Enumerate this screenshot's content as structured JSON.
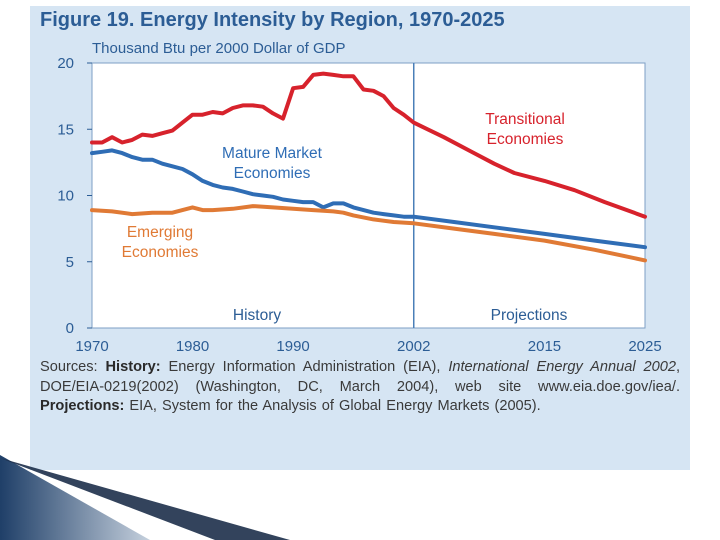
{
  "figure": {
    "title": "Figure 19.  Energy Intensity by Region, 1970-2025",
    "y_axis_label": "Thousand Btu per 2000 Dollar of GDP"
  },
  "sources": {
    "prefix": "Sources: ",
    "history_label": "History:",
    "history_text": " Energy Information Administration (EIA), ",
    "publication": "International Energy Annual 2002",
    "history_text2": ", DOE/EIA-0219(2002) (Washington, DC, March 2004), web site www.eia.doe.gov/iea/. ",
    "projections_label": "Projections:",
    "projections_text": " EIA, System for the Analysis of Global Energy Markets (2005)."
  },
  "colors": {
    "panel": "#d6e5f3",
    "plot_bg": "#ffffff",
    "text_blue": "#2c5d95",
    "transitional": "#d7222c",
    "mature": "#2f6db5",
    "emerging": "#e07a35"
  },
  "chart_data": {
    "type": "line",
    "xlim": [
      1970,
      2025
    ],
    "ylim": [
      0,
      20
    ],
    "x_ticks": [
      {
        "value": 1970,
        "label": "1970"
      },
      {
        "value": 1980,
        "label": "1980"
      },
      {
        "value": 1990,
        "label": "1990"
      },
      {
        "value": 2002,
        "label": "2002"
      },
      {
        "value": 2015,
        "label": "2015"
      },
      {
        "value": 2025,
        "label": "2025"
      }
    ],
    "y_ticks": [
      {
        "value": 0,
        "label": "0"
      },
      {
        "value": 5,
        "label": "5"
      },
      {
        "value": 10,
        "label": "10"
      },
      {
        "value": 15,
        "label": "15"
      },
      {
        "value": 20,
        "label": "20"
      }
    ],
    "divider_x": 2002,
    "region_labels": {
      "history": "History",
      "projections": "Projections"
    },
    "series": [
      {
        "key": "transitional",
        "label_lines": [
          "Transitional",
          "Economies"
        ],
        "color": "#d7222c",
        "points": [
          [
            1970,
            14.0
          ],
          [
            1971,
            14.0
          ],
          [
            1972,
            14.4
          ],
          [
            1973,
            14.0
          ],
          [
            1974,
            14.2
          ],
          [
            1975,
            14.6
          ],
          [
            1976,
            14.5
          ],
          [
            1977,
            14.7
          ],
          [
            1978,
            14.9
          ],
          [
            1979,
            15.5
          ],
          [
            1980,
            16.1
          ],
          [
            1981,
            16.1
          ],
          [
            1982,
            16.3
          ],
          [
            1983,
            16.2
          ],
          [
            1984,
            16.6
          ],
          [
            1985,
            16.8
          ],
          [
            1986,
            16.8
          ],
          [
            1987,
            16.7
          ],
          [
            1988,
            16.2
          ],
          [
            1989,
            15.8
          ],
          [
            1990,
            18.1
          ],
          [
            1991,
            18.2
          ],
          [
            1992,
            19.1
          ],
          [
            1993,
            19.2
          ],
          [
            1994,
            19.1
          ],
          [
            1995,
            19.0
          ],
          [
            1996,
            19.0
          ],
          [
            1997,
            18.0
          ],
          [
            1998,
            17.9
          ],
          [
            1999,
            17.5
          ],
          [
            2000,
            16.6
          ],
          [
            2001,
            16.1
          ],
          [
            2002,
            15.5
          ],
          [
            2005,
            14.4
          ],
          [
            2008,
            13.2
          ],
          [
            2010,
            12.4
          ],
          [
            2012,
            11.7
          ],
          [
            2015,
            11.1
          ],
          [
            2018,
            10.4
          ],
          [
            2021,
            9.5
          ],
          [
            2025,
            8.4
          ]
        ]
      },
      {
        "key": "mature",
        "label_lines": [
          "Mature Market",
          "Economies"
        ],
        "color": "#2f6db5",
        "points": [
          [
            1970,
            13.2
          ],
          [
            1971,
            13.3
          ],
          [
            1972,
            13.4
          ],
          [
            1973,
            13.2
          ],
          [
            1974,
            12.9
          ],
          [
            1975,
            12.7
          ],
          [
            1976,
            12.7
          ],
          [
            1977,
            12.4
          ],
          [
            1978,
            12.2
          ],
          [
            1979,
            12.0
          ],
          [
            1980,
            11.6
          ],
          [
            1981,
            11.1
          ],
          [
            1982,
            10.8
          ],
          [
            1983,
            10.6
          ],
          [
            1984,
            10.5
          ],
          [
            1985,
            10.3
          ],
          [
            1986,
            10.1
          ],
          [
            1987,
            10.0
          ],
          [
            1988,
            9.9
          ],
          [
            1989,
            9.7
          ],
          [
            1990,
            9.6
          ],
          [
            1991,
            9.5
          ],
          [
            1992,
            9.5
          ],
          [
            1993,
            9.1
          ],
          [
            1994,
            9.4
          ],
          [
            1995,
            9.4
          ],
          [
            1996,
            9.1
          ],
          [
            1997,
            8.9
          ],
          [
            1998,
            8.7
          ],
          [
            1999,
            8.6
          ],
          [
            2000,
            8.5
          ],
          [
            2001,
            8.4
          ],
          [
            2002,
            8.4
          ],
          [
            2006,
            8.0
          ],
          [
            2010,
            7.6
          ],
          [
            2015,
            7.1
          ],
          [
            2020,
            6.6
          ],
          [
            2025,
            6.1
          ]
        ]
      },
      {
        "key": "emerging",
        "label_lines": [
          "Emerging",
          "Economies"
        ],
        "color": "#e07a35",
        "points": [
          [
            1970,
            8.9
          ],
          [
            1972,
            8.8
          ],
          [
            1974,
            8.6
          ],
          [
            1976,
            8.7
          ],
          [
            1978,
            8.7
          ],
          [
            1980,
            9.1
          ],
          [
            1981,
            8.9
          ],
          [
            1982,
            8.9
          ],
          [
            1984,
            9.0
          ],
          [
            1986,
            9.2
          ],
          [
            1988,
            9.1
          ],
          [
            1990,
            9.0
          ],
          [
            1992,
            8.9
          ],
          [
            1994,
            8.8
          ],
          [
            1995,
            8.7
          ],
          [
            1996,
            8.5
          ],
          [
            1998,
            8.2
          ],
          [
            2000,
            8.0
          ],
          [
            2002,
            7.9
          ],
          [
            2006,
            7.5
          ],
          [
            2010,
            7.1
          ],
          [
            2015,
            6.6
          ],
          [
            2020,
            5.9
          ],
          [
            2025,
            5.1
          ]
        ]
      }
    ]
  }
}
